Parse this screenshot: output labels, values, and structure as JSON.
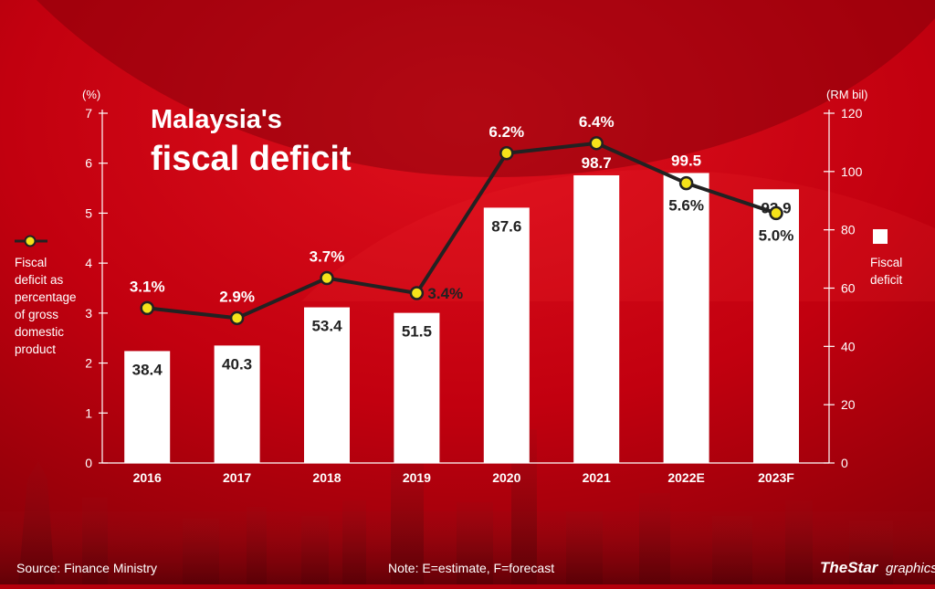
{
  "title": {
    "line1": "Malaysia's",
    "line2": "fiscal deficit"
  },
  "left_axis": {
    "unit": "(%)",
    "ticks": [
      0,
      1,
      2,
      3,
      4,
      5,
      6,
      7
    ]
  },
  "right_axis": {
    "unit": "(RM bil)",
    "ticks": [
      0,
      20,
      40,
      60,
      80,
      100,
      120
    ]
  },
  "legend": {
    "line_label": [
      "Fiscal",
      "deficit as",
      "percentage",
      "of gross",
      "domestic",
      "product"
    ],
    "bar_label": [
      "Fiscal",
      "deficit"
    ]
  },
  "footer": {
    "source": "Source: Finance Ministry",
    "note": "Note: E=estimate, F=forecast",
    "brand_the": "TheStar",
    "brand_graphics": "graphics"
  },
  "colors": {
    "background": "#b3000c",
    "bar": "#ffffff",
    "line": "#222222",
    "marker": "#f5e21a",
    "text": "#ffffff",
    "bar_label_text": "#222222"
  },
  "chart_data": {
    "type": "bar",
    "categories": [
      "2016",
      "2017",
      "2018",
      "2019",
      "2020",
      "2021",
      "2022E",
      "2023F"
    ],
    "series": [
      {
        "name": "Fiscal deficit",
        "type": "bar",
        "axis": "right",
        "values": [
          38.4,
          40.3,
          53.4,
          51.5,
          87.6,
          98.7,
          99.5,
          93.9
        ],
        "labels": [
          "38.4",
          "40.3",
          "53.4",
          "51.5",
          "87.6",
          "98.7",
          "99.5",
          "93.9"
        ]
      },
      {
        "name": "Fiscal deficit as percentage of gross domestic product",
        "type": "line",
        "axis": "left",
        "values": [
          3.1,
          2.9,
          3.7,
          3.4,
          6.2,
          6.4,
          5.6,
          5.0
        ],
        "labels": [
          "3.1%",
          "2.9%",
          "3.7%",
          "3.4%",
          "6.2%",
          "6.4%",
          "5.6%",
          "5.0%"
        ]
      }
    ],
    "ylim_left": [
      0,
      7
    ],
    "ylim_right": [
      0,
      120
    ],
    "ylabel_left": "(%)",
    "ylabel_right": "(RM bil)",
    "grid": false,
    "legend_position": "sides"
  }
}
